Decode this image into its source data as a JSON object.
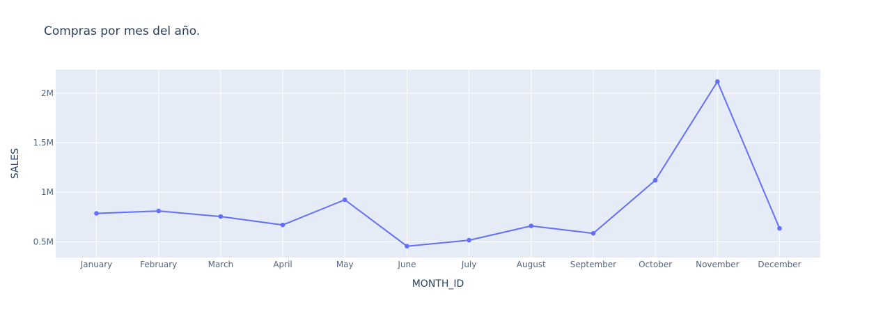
{
  "chart_data": {
    "type": "line",
    "title": "Compras por mes del año.",
    "xlabel": "MONTH_ID",
    "ylabel": "SALES",
    "categories": [
      "January",
      "February",
      "March",
      "April",
      "May",
      "June",
      "July",
      "August",
      "September",
      "October",
      "November",
      "December"
    ],
    "series": [
      {
        "values": [
          785874,
          810442,
          754502,
          669391,
          923973,
          454757,
          514876,
          659311,
          584724,
          1121215,
          2118886,
          634679
        ]
      }
    ],
    "ylim": [
      340000,
      2240000
    ],
    "yticks": [
      500000,
      1000000,
      1500000,
      2000000
    ],
    "ytick_labels": [
      "0.5M",
      "1M",
      "1.5M",
      "2M"
    ],
    "grid": true,
    "mode": "lines+markers",
    "colors": {
      "line": "#636efa",
      "plot_bg": "#e5ecf6",
      "grid": "#ffffff",
      "text": "#2a3f5f",
      "tick_text": "#506784"
    }
  }
}
